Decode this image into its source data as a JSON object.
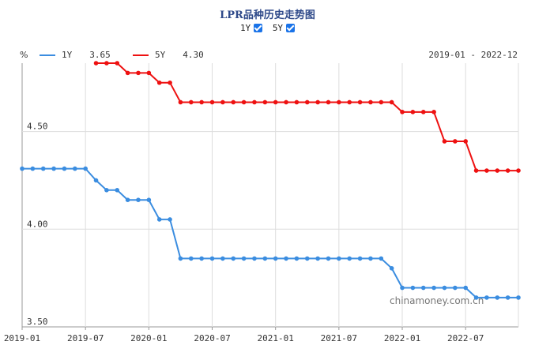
{
  "title": "LPR品种历史走势图",
  "toggles": [
    {
      "label": "1Y",
      "checked": true
    },
    {
      "label": "5Y",
      "checked": true
    }
  ],
  "unit": "%",
  "date_range": "2019-01 - 2022-12",
  "watermark": "chinamoney.com.cn",
  "colors": {
    "series_1y": "#3b8de0",
    "series_5y": "#ee1111",
    "grid": "#dddddd",
    "axis": "#999999"
  },
  "chart_data": {
    "type": "line",
    "xlabel": "",
    "ylabel": "%",
    "xlim": [
      "2019-01",
      "2022-12"
    ],
    "ylim": [
      3.5,
      4.85
    ],
    "x_ticks": [
      "2019-01",
      "2019-07",
      "2020-01",
      "2020-07",
      "2021-01",
      "2021-07",
      "2022-01",
      "2022-07"
    ],
    "y_ticks": [
      3.5,
      4.0,
      4.5
    ],
    "y_tick_labels": [
      "3.50",
      "4.00",
      "4.50"
    ],
    "grid": true,
    "legend_position": "top-left",
    "series": [
      {
        "name": "1Y",
        "last_value": "3.65",
        "color": "#3b8de0",
        "x": [
          "2019-01",
          "2019-02",
          "2019-03",
          "2019-04",
          "2019-05",
          "2019-06",
          "2019-07",
          "2019-08",
          "2019-09",
          "2019-10",
          "2019-11",
          "2019-12",
          "2020-01",
          "2020-02",
          "2020-03",
          "2020-04",
          "2020-05",
          "2020-06",
          "2020-07",
          "2020-08",
          "2020-09",
          "2020-10",
          "2020-11",
          "2020-12",
          "2021-01",
          "2021-02",
          "2021-03",
          "2021-04",
          "2021-05",
          "2021-06",
          "2021-07",
          "2021-08",
          "2021-09",
          "2021-10",
          "2021-11",
          "2021-12",
          "2022-01",
          "2022-02",
          "2022-03",
          "2022-04",
          "2022-05",
          "2022-06",
          "2022-07",
          "2022-08",
          "2022-09",
          "2022-10",
          "2022-11",
          "2022-12"
        ],
        "values": [
          4.31,
          4.31,
          4.31,
          4.31,
          4.31,
          4.31,
          4.31,
          4.25,
          4.2,
          4.2,
          4.15,
          4.15,
          4.15,
          4.05,
          4.05,
          3.85,
          3.85,
          3.85,
          3.85,
          3.85,
          3.85,
          3.85,
          3.85,
          3.85,
          3.85,
          3.85,
          3.85,
          3.85,
          3.85,
          3.85,
          3.85,
          3.85,
          3.85,
          3.85,
          3.85,
          3.8,
          3.7,
          3.7,
          3.7,
          3.7,
          3.7,
          3.7,
          3.7,
          3.65,
          3.65,
          3.65,
          3.65,
          3.65
        ]
      },
      {
        "name": "5Y",
        "last_value": "4.30",
        "color": "#ee1111",
        "x": [
          "2019-08",
          "2019-09",
          "2019-10",
          "2019-11",
          "2019-12",
          "2020-01",
          "2020-02",
          "2020-03",
          "2020-04",
          "2020-05",
          "2020-06",
          "2020-07",
          "2020-08",
          "2020-09",
          "2020-10",
          "2020-11",
          "2020-12",
          "2021-01",
          "2021-02",
          "2021-03",
          "2021-04",
          "2021-05",
          "2021-06",
          "2021-07",
          "2021-08",
          "2021-09",
          "2021-10",
          "2021-11",
          "2021-12",
          "2022-01",
          "2022-02",
          "2022-03",
          "2022-04",
          "2022-05",
          "2022-06",
          "2022-07",
          "2022-08",
          "2022-09",
          "2022-10",
          "2022-11",
          "2022-12"
        ],
        "values": [
          4.85,
          4.85,
          4.85,
          4.8,
          4.8,
          4.8,
          4.75,
          4.75,
          4.65,
          4.65,
          4.65,
          4.65,
          4.65,
          4.65,
          4.65,
          4.65,
          4.65,
          4.65,
          4.65,
          4.65,
          4.65,
          4.65,
          4.65,
          4.65,
          4.65,
          4.65,
          4.65,
          4.65,
          4.65,
          4.6,
          4.6,
          4.6,
          4.6,
          4.45,
          4.45,
          4.45,
          4.3,
          4.3,
          4.3,
          4.3,
          4.3
        ]
      }
    ]
  }
}
